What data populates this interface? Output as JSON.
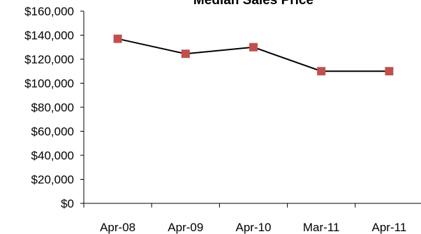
{
  "chart_data": {
    "type": "line",
    "title": "Median Sales Price",
    "xlabel": "",
    "ylabel": "",
    "categories": [
      "Apr-08",
      "Apr-09",
      "Apr-10",
      "Mar-11",
      "Apr-11"
    ],
    "series": [
      {
        "values": [
          137000,
          124500,
          130000,
          110000,
          110000
        ],
        "line_color": "#000000",
        "marker_color": "#C0504D",
        "marker": "square"
      }
    ],
    "ylim": [
      0,
      160000
    ],
    "y_ticks": [
      0,
      20000,
      40000,
      60000,
      80000,
      100000,
      120000,
      140000,
      160000
    ],
    "y_tick_labels": [
      "$0",
      "$20,000",
      "$40,000",
      "$60,000",
      "$80,000",
      "$100,000",
      "$120,000",
      "$140,000",
      "$160,000"
    ],
    "grid": false,
    "legend": "none"
  }
}
